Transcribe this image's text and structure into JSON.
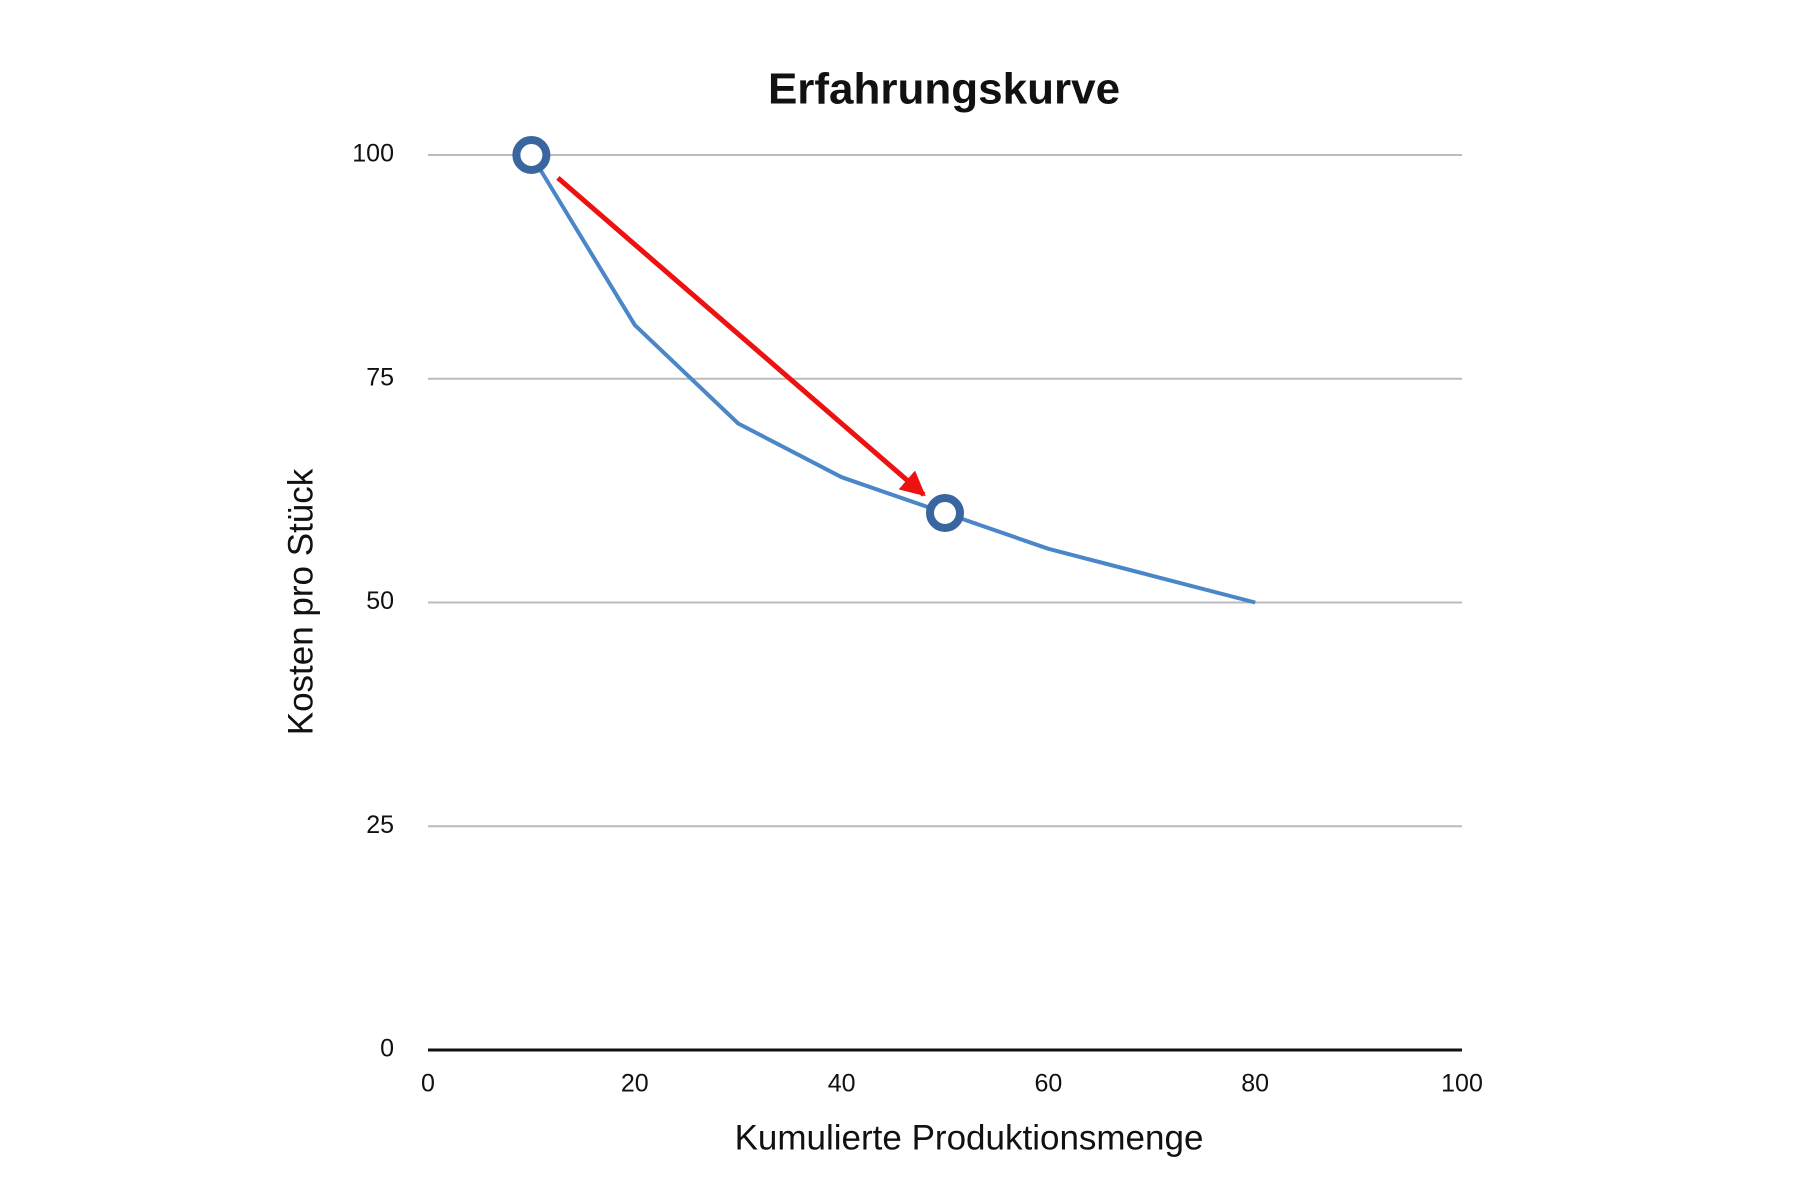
{
  "chart_data": {
    "type": "line",
    "title": "Erfahrungskurve",
    "x_label": "Kumulierte Produktionsmenge",
    "y_label": "Kosten pro Stück",
    "x": [
      10,
      20,
      30,
      40,
      50,
      60,
      70,
      80
    ],
    "series": [
      {
        "color": "#4a86c8",
        "values": [
          100,
          81,
          70,
          64,
          60,
          56,
          53,
          50
        ]
      }
    ],
    "highlight_points": {
      "color": "#3a66a0",
      "x": [
        10,
        50
      ],
      "y": [
        100,
        60
      ]
    },
    "arrow_color": "#ee1111",
    "xlim": [
      0,
      100
    ],
    "xticks": [
      0,
      20,
      40,
      60,
      80,
      100
    ],
    "ylim": [
      0,
      100
    ],
    "yticks": [
      0,
      25,
      50,
      75,
      100
    ],
    "grid": true
  }
}
